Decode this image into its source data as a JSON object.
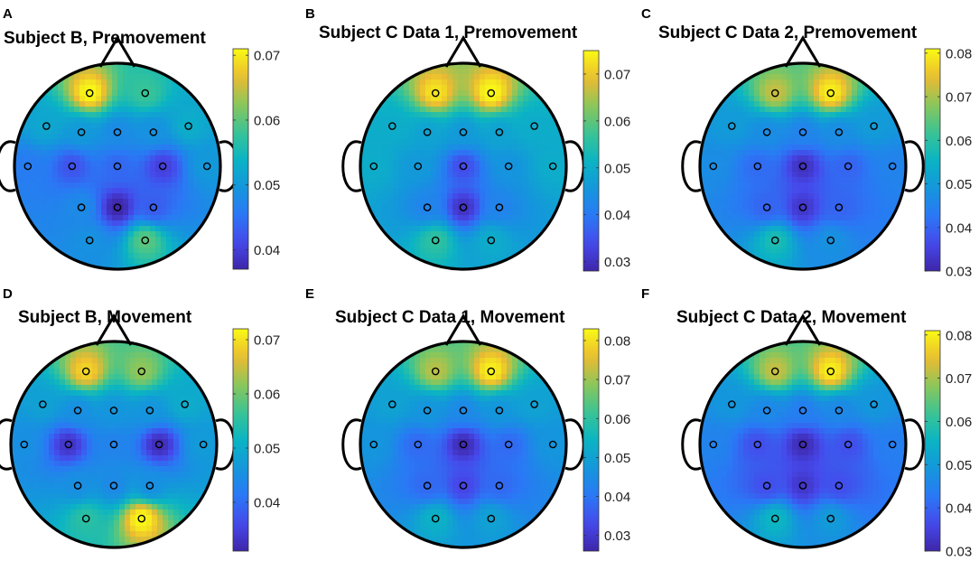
{
  "figure": {
    "panels_note": "EEG scalp topographic maps with colorbars",
    "electrode_names_hidden": true
  },
  "chart_data": [
    {
      "type": "heatmap",
      "panel_label": "A",
      "title": "Subject B, Premovement",
      "colorbar": {
        "min": 0.037,
        "max": 0.071,
        "ticks": [
          "0.04",
          "0.05",
          "0.06",
          "0.07"
        ],
        "tick_values": [
          0.04,
          0.05,
          0.06,
          0.07
        ]
      },
      "electrodes": [
        {
          "u": -0.27,
          "v": -0.71,
          "value": 0.071
        },
        {
          "u": 0.27,
          "v": -0.71,
          "value": 0.058
        },
        {
          "u": -0.69,
          "v": -0.39,
          "value": 0.052
        },
        {
          "u": -0.35,
          "v": -0.33,
          "value": 0.05
        },
        {
          "u": 0.0,
          "v": -0.33,
          "value": 0.048
        },
        {
          "u": 0.35,
          "v": -0.33,
          "value": 0.049
        },
        {
          "u": 0.69,
          "v": -0.39,
          "value": 0.053
        },
        {
          "u": -0.87,
          "v": 0.0,
          "value": 0.046
        },
        {
          "u": -0.44,
          "v": 0.0,
          "value": 0.042
        },
        {
          "u": 0.0,
          "v": 0.0,
          "value": 0.044
        },
        {
          "u": 0.44,
          "v": 0.0,
          "value": 0.04
        },
        {
          "u": 0.87,
          "v": 0.0,
          "value": 0.05
        },
        {
          "u": -0.35,
          "v": 0.4,
          "value": 0.048
        },
        {
          "u": 0.0,
          "v": 0.4,
          "value": 0.037
        },
        {
          "u": 0.35,
          "v": 0.4,
          "value": 0.043
        },
        {
          "u": -0.27,
          "v": 0.72,
          "value": 0.049
        },
        {
          "u": 0.27,
          "v": 0.72,
          "value": 0.06
        }
      ]
    },
    {
      "type": "heatmap",
      "panel_label": "B",
      "title": "Subject C Data 1, Premovement",
      "colorbar": {
        "min": 0.028,
        "max": 0.075,
        "ticks": [
          "0.03",
          "0.04",
          "0.05",
          "0.06",
          "0.07"
        ],
        "tick_values": [
          0.03,
          0.04,
          0.05,
          0.06,
          0.07
        ]
      },
      "electrodes": [
        {
          "u": -0.27,
          "v": -0.71,
          "value": 0.073
        },
        {
          "u": 0.27,
          "v": -0.71,
          "value": 0.075
        },
        {
          "u": -0.69,
          "v": -0.39,
          "value": 0.05
        },
        {
          "u": -0.35,
          "v": -0.33,
          "value": 0.048
        },
        {
          "u": 0.0,
          "v": -0.33,
          "value": 0.046
        },
        {
          "u": 0.35,
          "v": -0.33,
          "value": 0.048
        },
        {
          "u": 0.69,
          "v": -0.39,
          "value": 0.05
        },
        {
          "u": -0.87,
          "v": 0.0,
          "value": 0.05
        },
        {
          "u": -0.44,
          "v": 0.0,
          "value": 0.046
        },
        {
          "u": 0.0,
          "v": 0.0,
          "value": 0.034
        },
        {
          "u": 0.44,
          "v": 0.0,
          "value": 0.045
        },
        {
          "u": 0.87,
          "v": 0.0,
          "value": 0.05
        },
        {
          "u": -0.35,
          "v": 0.4,
          "value": 0.042
        },
        {
          "u": 0.0,
          "v": 0.4,
          "value": 0.03
        },
        {
          "u": 0.35,
          "v": 0.4,
          "value": 0.042
        },
        {
          "u": -0.27,
          "v": 0.72,
          "value": 0.056
        },
        {
          "u": 0.27,
          "v": 0.72,
          "value": 0.05
        }
      ]
    },
    {
      "type": "heatmap",
      "panel_label": "C",
      "title": "Subject C Data 2, Premovement",
      "colorbar": {
        "min": 0.03,
        "max": 0.081,
        "ticks": [
          "0.03",
          "0.04",
          "0.05",
          "0.06",
          "0.07",
          "0.08"
        ],
        "tick_values": [
          0.03,
          0.04,
          0.05,
          0.06,
          0.07,
          0.08
        ]
      },
      "electrodes": [
        {
          "u": -0.27,
          "v": -0.71,
          "value": 0.072
        },
        {
          "u": 0.27,
          "v": -0.71,
          "value": 0.08
        },
        {
          "u": -0.69,
          "v": -0.39,
          "value": 0.05
        },
        {
          "u": -0.35,
          "v": -0.33,
          "value": 0.047
        },
        {
          "u": 0.0,
          "v": -0.33,
          "value": 0.045
        },
        {
          "u": 0.35,
          "v": -0.33,
          "value": 0.047
        },
        {
          "u": 0.69,
          "v": -0.39,
          "value": 0.05
        },
        {
          "u": -0.87,
          "v": 0.0,
          "value": 0.047
        },
        {
          "u": -0.44,
          "v": 0.0,
          "value": 0.041
        },
        {
          "u": 0.0,
          "v": 0.0,
          "value": 0.032
        },
        {
          "u": 0.44,
          "v": 0.0,
          "value": 0.04
        },
        {
          "u": 0.87,
          "v": 0.0,
          "value": 0.045
        },
        {
          "u": -0.35,
          "v": 0.4,
          "value": 0.04
        },
        {
          "u": 0.0,
          "v": 0.4,
          "value": 0.033
        },
        {
          "u": 0.35,
          "v": 0.4,
          "value": 0.04
        },
        {
          "u": -0.27,
          "v": 0.72,
          "value": 0.058
        },
        {
          "u": 0.27,
          "v": 0.72,
          "value": 0.048
        }
      ]
    },
    {
      "type": "heatmap",
      "panel_label": "D",
      "title": "Subject B, Movement",
      "colorbar": {
        "min": 0.031,
        "max": 0.072,
        "ticks": [
          "0.04",
          "0.05",
          "0.06",
          "0.07"
        ],
        "tick_values": [
          0.04,
          0.05,
          0.06,
          0.07
        ]
      },
      "electrodes": [
        {
          "u": -0.27,
          "v": -0.71,
          "value": 0.069
        },
        {
          "u": 0.27,
          "v": -0.71,
          "value": 0.062
        },
        {
          "u": -0.69,
          "v": -0.39,
          "value": 0.048
        },
        {
          "u": -0.35,
          "v": -0.33,
          "value": 0.045
        },
        {
          "u": 0.0,
          "v": -0.33,
          "value": 0.046
        },
        {
          "u": 0.35,
          "v": -0.33,
          "value": 0.046
        },
        {
          "u": 0.69,
          "v": -0.39,
          "value": 0.05
        },
        {
          "u": -0.87,
          "v": 0.0,
          "value": 0.045
        },
        {
          "u": -0.44,
          "v": 0.0,
          "value": 0.033
        },
        {
          "u": 0.0,
          "v": 0.0,
          "value": 0.043
        },
        {
          "u": 0.44,
          "v": 0.0,
          "value": 0.032
        },
        {
          "u": 0.87,
          "v": 0.0,
          "value": 0.047
        },
        {
          "u": -0.35,
          "v": 0.4,
          "value": 0.045
        },
        {
          "u": 0.0,
          "v": 0.4,
          "value": 0.044
        },
        {
          "u": 0.35,
          "v": 0.4,
          "value": 0.045
        },
        {
          "u": -0.27,
          "v": 0.72,
          "value": 0.055
        },
        {
          "u": 0.27,
          "v": 0.72,
          "value": 0.072
        }
      ]
    },
    {
      "type": "heatmap",
      "panel_label": "E",
      "title": "Subject C Data 1, Movement",
      "colorbar": {
        "min": 0.026,
        "max": 0.083,
        "ticks": [
          "0.03",
          "0.04",
          "0.05",
          "0.06",
          "0.07",
          "0.08"
        ],
        "tick_values": [
          0.03,
          0.04,
          0.05,
          0.06,
          0.07,
          0.08
        ]
      },
      "electrodes": [
        {
          "u": -0.27,
          "v": -0.71,
          "value": 0.072
        },
        {
          "u": 0.27,
          "v": -0.71,
          "value": 0.082
        },
        {
          "u": -0.69,
          "v": -0.39,
          "value": 0.05
        },
        {
          "u": -0.35,
          "v": -0.33,
          "value": 0.047
        },
        {
          "u": 0.0,
          "v": -0.33,
          "value": 0.044
        },
        {
          "u": 0.35,
          "v": -0.33,
          "value": 0.047
        },
        {
          "u": 0.69,
          "v": -0.39,
          "value": 0.05
        },
        {
          "u": -0.87,
          "v": 0.0,
          "value": 0.047
        },
        {
          "u": -0.44,
          "v": 0.0,
          "value": 0.038
        },
        {
          "u": 0.0,
          "v": 0.0,
          "value": 0.027
        },
        {
          "u": 0.44,
          "v": 0.0,
          "value": 0.038
        },
        {
          "u": 0.87,
          "v": 0.0,
          "value": 0.047
        },
        {
          "u": -0.35,
          "v": 0.4,
          "value": 0.038
        },
        {
          "u": 0.0,
          "v": 0.4,
          "value": 0.032
        },
        {
          "u": 0.35,
          "v": 0.4,
          "value": 0.038
        },
        {
          "u": -0.27,
          "v": 0.72,
          "value": 0.054
        },
        {
          "u": 0.27,
          "v": 0.72,
          "value": 0.05
        }
      ]
    },
    {
      "type": "heatmap",
      "panel_label": "F",
      "title": "Subject C Data 2, Movement",
      "colorbar": {
        "min": 0.03,
        "max": 0.081,
        "ticks": [
          "0.03",
          "0.04",
          "0.05",
          "0.06",
          "0.07",
          "0.08"
        ],
        "tick_values": [
          0.03,
          0.04,
          0.05,
          0.06,
          0.07,
          0.08
        ]
      },
      "electrodes": [
        {
          "u": -0.27,
          "v": -0.71,
          "value": 0.072
        },
        {
          "u": 0.27,
          "v": -0.71,
          "value": 0.08
        },
        {
          "u": -0.69,
          "v": -0.39,
          "value": 0.049
        },
        {
          "u": -0.35,
          "v": -0.33,
          "value": 0.046
        },
        {
          "u": 0.0,
          "v": -0.33,
          "value": 0.044
        },
        {
          "u": 0.35,
          "v": -0.33,
          "value": 0.046
        },
        {
          "u": 0.69,
          "v": -0.39,
          "value": 0.049
        },
        {
          "u": -0.87,
          "v": 0.0,
          "value": 0.045
        },
        {
          "u": -0.44,
          "v": 0.0,
          "value": 0.037
        },
        {
          "u": 0.0,
          "v": 0.0,
          "value": 0.031
        },
        {
          "u": 0.44,
          "v": 0.0,
          "value": 0.037
        },
        {
          "u": 0.87,
          "v": 0.0,
          "value": 0.044
        },
        {
          "u": -0.35,
          "v": 0.4,
          "value": 0.037
        },
        {
          "u": 0.0,
          "v": 0.4,
          "value": 0.033
        },
        {
          "u": 0.35,
          "v": 0.4,
          "value": 0.037
        },
        {
          "u": -0.27,
          "v": 0.72,
          "value": 0.056
        },
        {
          "u": 0.27,
          "v": 0.72,
          "value": 0.05
        }
      ]
    }
  ]
}
